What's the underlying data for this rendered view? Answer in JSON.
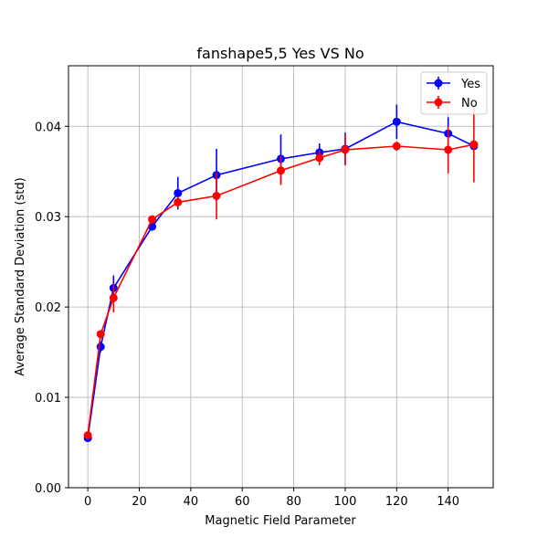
{
  "chart_data": {
    "type": "line",
    "title": "fanshape5,5 Yes VS No",
    "xlabel": "Magnetic Field Parameter",
    "ylabel": "Average Standard Deviation (std)",
    "xlim": [
      -7.5,
      157.5
    ],
    "ylim": [
      0,
      0.0467
    ],
    "xticks": [
      0,
      20,
      40,
      60,
      80,
      100,
      120,
      140
    ],
    "xtick_labels": [
      "0",
      "20",
      "40",
      "60",
      "80",
      "100",
      "120",
      "140"
    ],
    "yticks": [
      0.0,
      0.01,
      0.02,
      0.03,
      0.04
    ],
    "ytick_labels": [
      "0.00",
      "0.01",
      "0.02",
      "0.03",
      "0.04"
    ],
    "grid": true,
    "legend_position": "top-right",
    "series": [
      {
        "name": "Yes",
        "color": "#0000ff",
        "x": [
          0,
          5,
          10,
          25,
          35,
          50,
          75,
          90,
          100,
          120,
          140,
          150
        ],
        "y": [
          0.0055,
          0.0156,
          0.0221,
          0.0289,
          0.0326,
          0.0346,
          0.0364,
          0.0371,
          0.0375,
          0.0405,
          0.0392,
          0.0378
        ],
        "err": [
          0.0002,
          0.0006,
          0.0014,
          0.0003,
          0.0018,
          0.0029,
          0.0027,
          0.001,
          0.0018,
          0.0019,
          0.0018,
          0.0002
        ]
      },
      {
        "name": "No",
        "color": "#ff0000",
        "x": [
          0,
          5,
          10,
          25,
          35,
          50,
          75,
          90,
          100,
          120,
          140,
          150
        ],
        "y": [
          0.0058,
          0.017,
          0.021,
          0.0297,
          0.0316,
          0.0323,
          0.0351,
          0.0365,
          0.0374,
          0.0378,
          0.0374,
          0.038
        ],
        "err": [
          0.0002,
          0.0003,
          0.0016,
          0.0004,
          0.0006,
          0.0026,
          0.0016,
          0.0008,
          0.0017,
          0.0005,
          0.0026,
          0.0042
        ]
      }
    ]
  }
}
